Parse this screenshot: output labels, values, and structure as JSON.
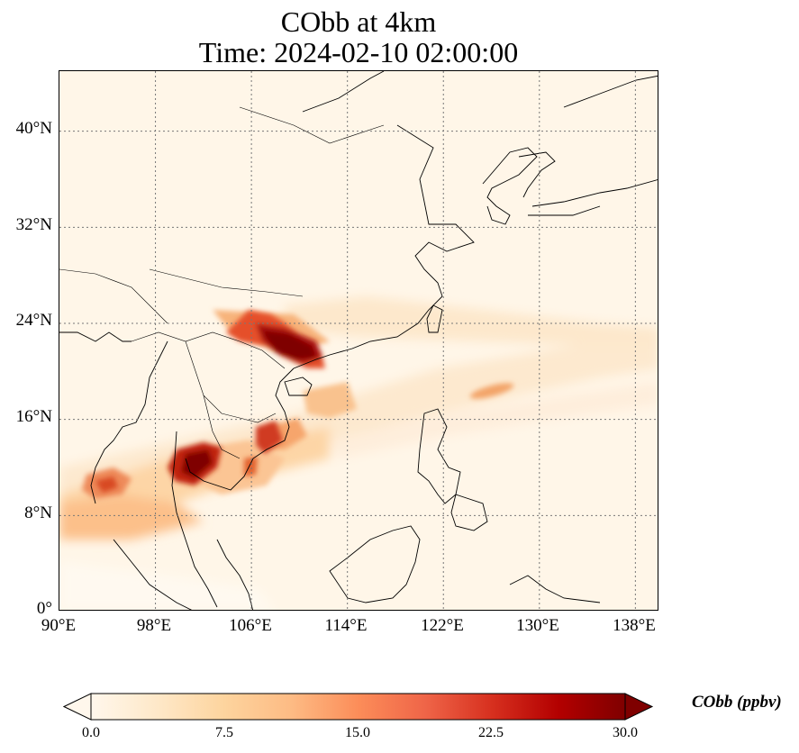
{
  "title": {
    "line1": "CObb at 4km",
    "line2": "Time: 2024-02-10 02:00:00"
  },
  "map": {
    "lon_range": [
      90,
      140
    ],
    "lat_range": [
      0,
      45
    ],
    "lon_ticks": [
      "90°E",
      "98°E",
      "106°E",
      "114°E",
      "122°E",
      "130°E",
      "138°E"
    ],
    "lat_ticks": [
      "0°",
      "8°N",
      "16°N",
      "24°N",
      "32°N",
      "40°N"
    ],
    "gridlines": true,
    "field": "COBB concentration (ppbv)",
    "hotspots": [
      {
        "region": "Southern China / Guangxi–Guangdong",
        "level": "above 30"
      },
      {
        "region": "Northern Laos / Thailand border",
        "level": "above 30"
      },
      {
        "region": "Central Vietnam coast",
        "level": "about 25"
      },
      {
        "region": "Gulf of Martaban / Myanmar coast",
        "level": "about 17"
      },
      {
        "region": "Pacific band east of Taiwan",
        "level": "about 10"
      }
    ],
    "colors": {
      "low": "#fff5eb",
      "mid": "#fdae6b",
      "high": "#7f0000",
      "grid": "#777777",
      "coast": "#000000"
    }
  },
  "colorbar": {
    "title": "CObb (ppbv)",
    "min": 0.0,
    "max": 30.0,
    "ticks": [
      "0.0",
      "7.5",
      "15.0",
      "22.5",
      "30.0"
    ],
    "extend": "both",
    "colormap": "OrRd"
  }
}
